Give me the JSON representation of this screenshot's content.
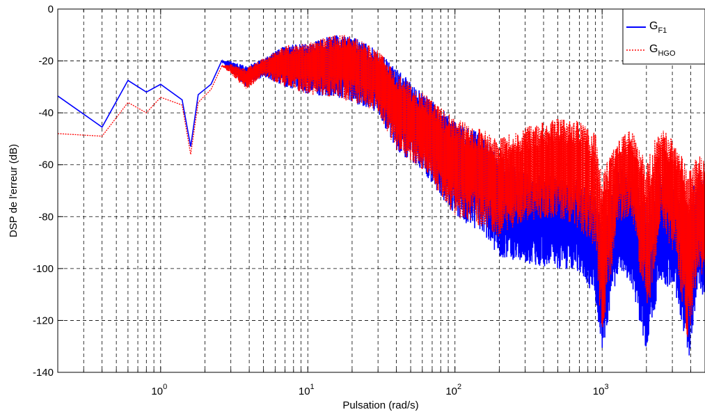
{
  "chart_data": {
    "type": "line",
    "title": "",
    "xlabel": "Pulsation (rad/s)",
    "ylabel": "DSP de l'erreur (dB)",
    "xscale": "log",
    "xlim": [
      0.2,
      5000
    ],
    "ylim": [
      -140,
      0
    ],
    "grid": true,
    "legend_position": "top-right",
    "x_ticks": [
      {
        "value": 1,
        "base": "10",
        "exp": "0"
      },
      {
        "value": 10,
        "base": "10",
        "exp": "1"
      },
      {
        "value": 100,
        "base": "10",
        "exp": "2"
      },
      {
        "value": 1000,
        "base": "10",
        "exp": "3"
      }
    ],
    "y_ticks": [
      0,
      -20,
      -40,
      -60,
      -80,
      -100,
      -120,
      -140
    ],
    "y_tick_labels": [
      "0",
      "-20",
      "-40",
      "-60",
      "-80",
      "-100",
      "-120",
      "-140"
    ],
    "series": [
      {
        "name_main": "G",
        "name_sub": "F1",
        "color": "#0000ff",
        "dash": "solid",
        "envelope": [
          [
            0.2,
            -33.5,
            -33.5
          ],
          [
            0.4,
            -45.5,
            -45.5
          ],
          [
            0.6,
            -27.5,
            -27.5
          ],
          [
            0.8,
            -32,
            -32
          ],
          [
            1.0,
            -29,
            -29
          ],
          [
            1.4,
            -35,
            -35
          ],
          [
            1.6,
            -53,
            -53
          ],
          [
            1.8,
            -33,
            -33
          ],
          [
            2.2,
            -29,
            -29
          ],
          [
            2.6,
            -20,
            -20
          ],
          [
            3,
            -20,
            -24
          ],
          [
            3.8,
            -22,
            -30
          ],
          [
            5,
            -19,
            -26
          ],
          [
            7,
            -14,
            -30
          ],
          [
            10,
            -13,
            -33
          ],
          [
            15,
            -10,
            -34
          ],
          [
            20,
            -10,
            -36
          ],
          [
            30,
            -16,
            -40
          ],
          [
            40,
            -23,
            -55
          ],
          [
            60,
            -32,
            -62
          ],
          [
            100,
            -43,
            -80
          ],
          [
            150,
            -48,
            -86
          ],
          [
            200,
            -57,
            -96
          ],
          [
            300,
            -63,
            -98
          ],
          [
            500,
            -64,
            -100
          ],
          [
            700,
            -66,
            -102
          ],
          [
            900,
            -72,
            -112
          ],
          [
            1000,
            -80,
            -132
          ],
          [
            1300,
            -60,
            -100
          ],
          [
            1600,
            -66,
            -108
          ],
          [
            2000,
            -72,
            -132
          ],
          [
            2500,
            -62,
            -104
          ],
          [
            3200,
            -64,
            -112
          ],
          [
            3900,
            -74,
            -136
          ],
          [
            4500,
            -62,
            -108
          ],
          [
            5000,
            -66,
            -112
          ]
        ]
      },
      {
        "name_main": "G",
        "name_sub": "HGO",
        "color": "#ff0000",
        "dash": "dotted",
        "envelope": [
          [
            0.2,
            -48,
            -48
          ],
          [
            0.4,
            -49,
            -49
          ],
          [
            0.6,
            -36,
            -36
          ],
          [
            0.8,
            -40,
            -40
          ],
          [
            1.0,
            -34,
            -34
          ],
          [
            1.4,
            -37,
            -37
          ],
          [
            1.6,
            -56,
            -56
          ],
          [
            1.8,
            -36,
            -36
          ],
          [
            2.2,
            -31,
            -31
          ],
          [
            2.6,
            -22,
            -22
          ],
          [
            3,
            -21,
            -25
          ],
          [
            3.8,
            -23,
            -31
          ],
          [
            5,
            -19,
            -26
          ],
          [
            7,
            -14,
            -30
          ],
          [
            10,
            -13,
            -33
          ],
          [
            15,
            -10,
            -34
          ],
          [
            20,
            -10,
            -36
          ],
          [
            30,
            -16,
            -40
          ],
          [
            40,
            -24,
            -55
          ],
          [
            60,
            -32,
            -62
          ],
          [
            100,
            -42,
            -80
          ],
          [
            150,
            -46,
            -84
          ],
          [
            200,
            -50,
            -88
          ],
          [
            300,
            -45,
            -82
          ],
          [
            500,
            -42,
            -80
          ],
          [
            700,
            -43,
            -85
          ],
          [
            900,
            -48,
            -92
          ],
          [
            1000,
            -62,
            -128
          ],
          [
            1300,
            -50,
            -82
          ],
          [
            1600,
            -46,
            -80
          ],
          [
            2000,
            -58,
            -122
          ],
          [
            2500,
            -45,
            -84
          ],
          [
            3200,
            -52,
            -96
          ],
          [
            3900,
            -62,
            -134
          ],
          [
            4500,
            -56,
            -100
          ],
          [
            5000,
            -58,
            -105
          ]
        ]
      }
    ]
  }
}
